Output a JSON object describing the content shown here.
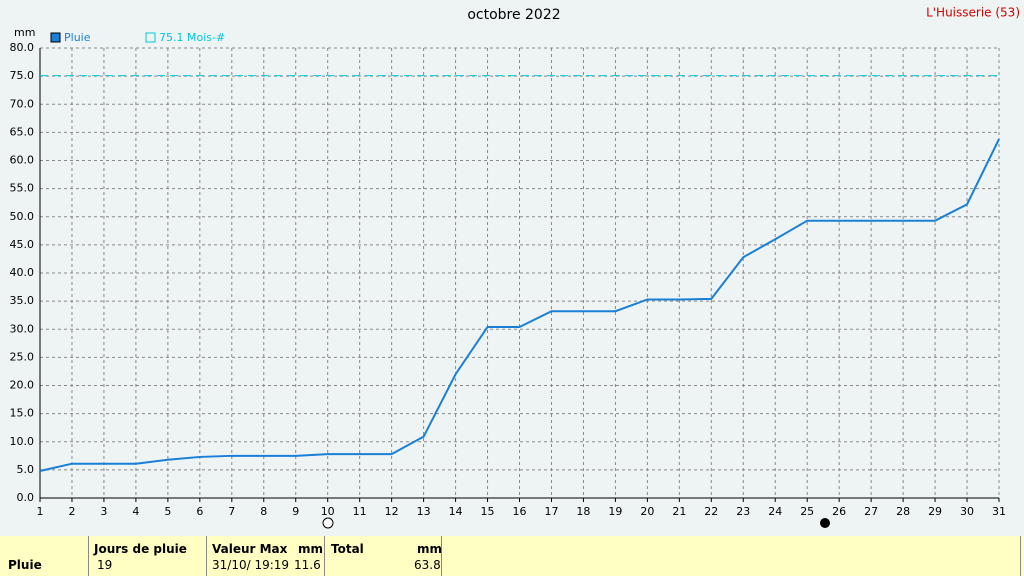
{
  "chart_data": {
    "type": "line",
    "title": "octobre 2022",
    "location": "L'Huisserie (53)",
    "y_label": "mm",
    "x": [
      1,
      2,
      3,
      4,
      5,
      6,
      7,
      8,
      9,
      10,
      11,
      12,
      13,
      14,
      15,
      16,
      17,
      18,
      19,
      20,
      21,
      22,
      23,
      24,
      25,
      26,
      27,
      28,
      29,
      30,
      31
    ],
    "xlim": [
      1,
      31
    ],
    "xticks": [
      1,
      2,
      3,
      4,
      5,
      6,
      7,
      8,
      9,
      10,
      11,
      12,
      13,
      14,
      15,
      16,
      17,
      18,
      19,
      20,
      21,
      22,
      23,
      24,
      25,
      26,
      27,
      28,
      29,
      30,
      31
    ],
    "ylim": [
      0,
      80
    ],
    "yticks": [
      {
        "value": 0,
        "label": "0.0"
      },
      {
        "value": 5,
        "label": "5.0"
      },
      {
        "value": 10,
        "label": "10.0"
      },
      {
        "value": 15,
        "label": "15.0"
      },
      {
        "value": 20,
        "label": "20.0"
      },
      {
        "value": 25,
        "label": "25.0"
      },
      {
        "value": 30,
        "label": "30.0"
      },
      {
        "value": 35,
        "label": "35.0"
      },
      {
        "value": 40,
        "label": "40.0"
      },
      {
        "value": 45,
        "label": "45.0"
      },
      {
        "value": 50,
        "label": "50.0"
      },
      {
        "value": 55,
        "label": "55.0"
      },
      {
        "value": 60,
        "label": "60.0"
      },
      {
        "value": 65,
        "label": "65.0"
      },
      {
        "value": 70,
        "label": "70.0"
      },
      {
        "value": 75,
        "label": "75.0"
      },
      {
        "value": 80,
        "label": "80.0"
      }
    ],
    "grid": true,
    "series": [
      {
        "name": "Pluie",
        "color": "#1a7fd6",
        "values": [
          4.8,
          6.1,
          6.1,
          6.1,
          6.8,
          7.3,
          7.5,
          7.5,
          7.5,
          7.8,
          7.8,
          7.8,
          10.9,
          22.0,
          30.4,
          30.4,
          33.2,
          33.2,
          33.2,
          35.3,
          35.3,
          35.4,
          42.8,
          46.0,
          49.3,
          49.3,
          49.3,
          49.3,
          49.3,
          52.2,
          63.8
        ]
      }
    ],
    "threshold": {
      "value": 75.1,
      "label": "75.1 Mois-#",
      "color": "#00c8d8"
    }
  },
  "table": {
    "header": [
      "Jours de pluie",
      "Valeur Max",
      "mm",
      "Total",
      "mm"
    ],
    "row": [
      "Pluie",
      "19",
      "31/10/ 19:19",
      "11.6",
      "63.8"
    ]
  }
}
